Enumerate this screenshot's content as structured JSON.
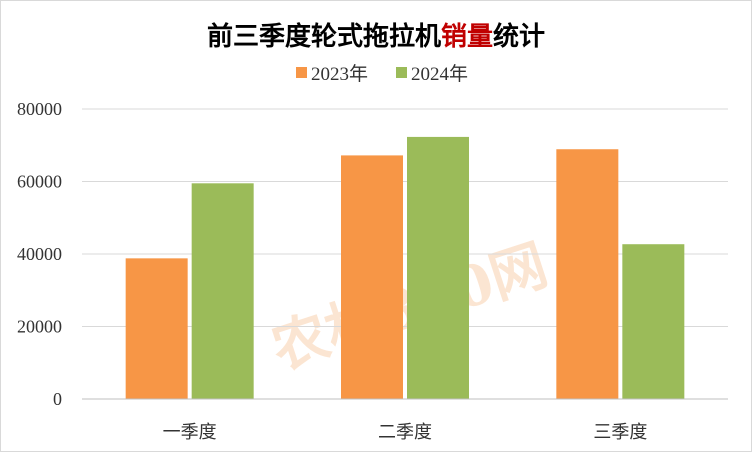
{
  "chart_data": {
    "type": "bar",
    "title_main": "前三季度轮式拖拉机",
    "title_accent": "销量",
    "title_tail": "统计",
    "categories": [
      "一季度",
      "二季度",
      "三季度"
    ],
    "series": [
      {
        "name": "2023年",
        "color": "#f79646",
        "values": [
          38800,
          67200,
          68900
        ]
      },
      {
        "name": "2024年",
        "color": "#9bbb59",
        "values": [
          59500,
          72300,
          42700
        ]
      }
    ],
    "ylim": [
      0,
      80000
    ],
    "yticks": [
      "0",
      "20000",
      "40000",
      "60000",
      "80000"
    ],
    "grid": true,
    "legend_position": "top"
  }
}
